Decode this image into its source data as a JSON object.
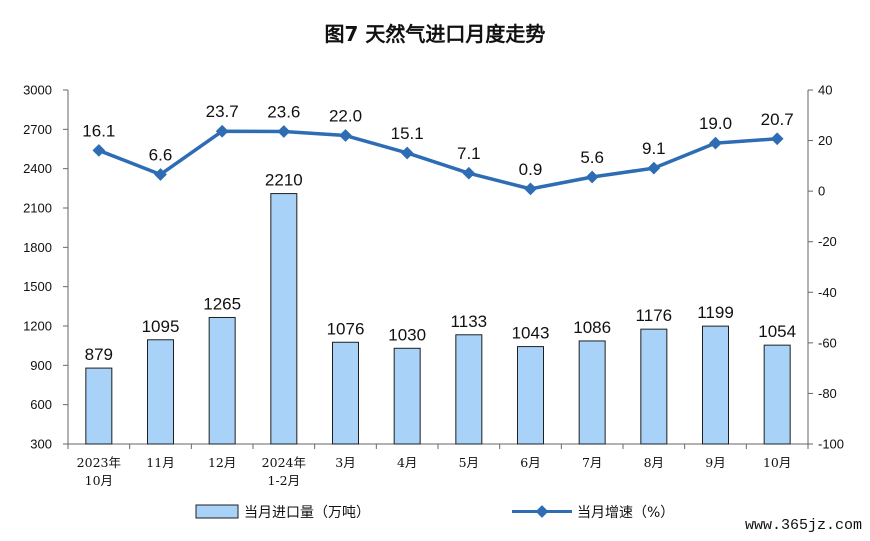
{
  "chart_data": {
    "title": "图7  天然气进口月度走势",
    "type": "bar+line",
    "categories": [
      [
        "2023年",
        "10月"
      ],
      [
        "11月"
      ],
      [
        "12月"
      ],
      [
        "2024年",
        "1-2月"
      ],
      [
        "3月"
      ],
      [
        "4月"
      ],
      [
        "5月"
      ],
      [
        "6月"
      ],
      [
        "7月"
      ],
      [
        "8月"
      ],
      [
        "9月"
      ],
      [
        "10月"
      ]
    ],
    "series": [
      {
        "name": "当月进口量（万吨）",
        "type": "bar",
        "axis": "left",
        "values": [
          879,
          1095,
          1265,
          2210,
          1076,
          1030,
          1133,
          1043,
          1086,
          1176,
          1199,
          1054
        ],
        "labels": [
          "879",
          "1095",
          "1265",
          "2210",
          "1076",
          "1030",
          "1133",
          "1043",
          "1086",
          "1176",
          "1199",
          "1054"
        ]
      },
      {
        "name": "当月增速（%）",
        "type": "line",
        "axis": "right",
        "values": [
          16.1,
          6.6,
          23.7,
          23.6,
          22.0,
          15.1,
          7.1,
          0.9,
          5.6,
          9.1,
          19.0,
          20.7
        ],
        "labels": [
          "16.1",
          "6.6",
          "23.7",
          "23.6",
          "22.0",
          "15.1",
          "7.1",
          "0.9",
          "5.6",
          "9.1",
          "19.0",
          "20.7"
        ]
      }
    ],
    "y_left": {
      "min": 300,
      "max": 3000,
      "ticks": [
        "300",
        "600",
        "900",
        "1200",
        "1500",
        "1800",
        "2100",
        "2400",
        "2700",
        "3000"
      ]
    },
    "y_right": {
      "min": -100,
      "max": 40,
      "ticks": [
        "-100",
        "-80",
        "-60",
        "-40",
        "-20",
        "0",
        "20",
        "40"
      ]
    },
    "grid": false,
    "legend_position": "bottom",
    "colors": {
      "bar_fill": "#a8d2f7",
      "bar_stroke": "#1f1f1f",
      "line": "#2e6db4",
      "axis": "#666666"
    }
  },
  "watermark": "www.365jz.com"
}
